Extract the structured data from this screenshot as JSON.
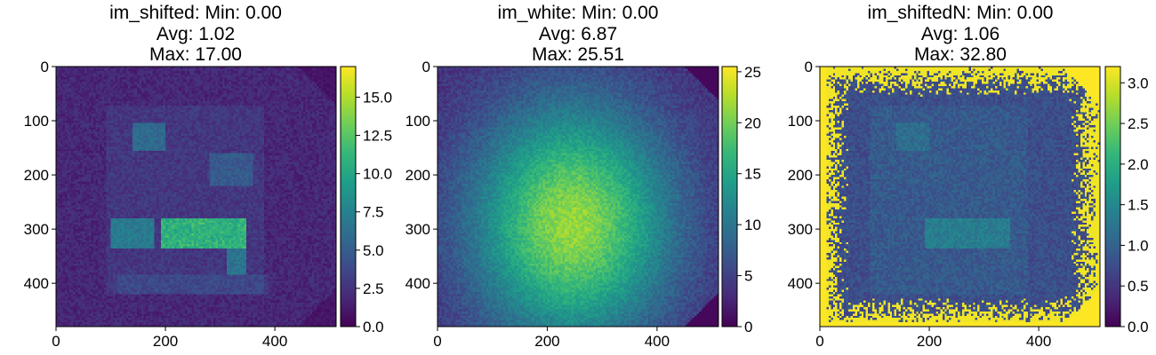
{
  "colors": {
    "colormap": "viridis",
    "viridis_stops": [
      "#440154",
      "#482878",
      "#3e4989",
      "#31688e",
      "#26828e",
      "#1f9e89",
      "#35b779",
      "#6ece58",
      "#b5de2b",
      "#fde725"
    ]
  },
  "chart_data": [
    {
      "type": "heatmap",
      "title": [
        "im_shifted: Min: 0.00",
        "Avg: 1.02",
        "Max: 17.00"
      ],
      "stats": {
        "min": 0.0,
        "avg": 1.02,
        "max": 17.0
      },
      "image_size": [
        512,
        480
      ],
      "xlim": [
        0,
        512
      ],
      "ylim": [
        480,
        0
      ],
      "xticks": [
        0,
        200,
        400
      ],
      "yticks": [
        0,
        100,
        200,
        300,
        400
      ],
      "colorbar": {
        "vmin": 0,
        "vmax": 17,
        "ticks": [
          0.0,
          2.5,
          5.0,
          7.5,
          10.0,
          12.5,
          15.0
        ],
        "labels": [
          "0.0",
          "2.5",
          "5.0",
          "7.5",
          "10.0",
          "12.5",
          "15.0"
        ]
      },
      "pattern": "grid_of_squares_with_bright_row",
      "grid": false
    },
    {
      "type": "heatmap",
      "title": [
        "im_white: Min: 0.00",
        "Avg: 6.87",
        "Max: 25.51"
      ],
      "stats": {
        "min": 0.0,
        "avg": 6.87,
        "max": 25.51
      },
      "image_size": [
        512,
        480
      ],
      "xlim": [
        0,
        512
      ],
      "ylim": [
        480,
        0
      ],
      "xticks": [
        0,
        200,
        400
      ],
      "yticks": [
        0,
        100,
        200,
        300,
        400
      ],
      "colorbar": {
        "vmin": 0,
        "vmax": 25.51,
        "ticks": [
          0,
          5,
          10,
          15,
          20,
          25
        ],
        "labels": [
          "0",
          "5",
          "10",
          "15",
          "20",
          "25"
        ]
      },
      "pattern": "radial_blob_centered_near_x250_y290",
      "grid": false
    },
    {
      "type": "heatmap",
      "title": [
        "im_shiftedN: Min: 0.00",
        "Avg: 1.06",
        "Max: 32.80"
      ],
      "stats": {
        "min": 0.0,
        "avg": 1.06,
        "max": 32.8
      },
      "image_size": [
        512,
        480
      ],
      "xlim": [
        0,
        512
      ],
      "ylim": [
        480,
        0
      ],
      "xticks": [
        0,
        200,
        400
      ],
      "yticks": [
        0,
        100,
        200,
        300,
        400
      ],
      "colorbar": {
        "vmin": 0,
        "vmax": 3.2,
        "ticks": [
          0.0,
          0.5,
          1.0,
          1.5,
          2.0,
          2.5,
          3.0
        ],
        "labels": [
          "0.0",
          "0.5",
          "1.0",
          "1.5",
          "2.0",
          "2.5",
          "3.0"
        ]
      },
      "pattern": "normalized_with_saturated_edges",
      "grid": false
    }
  ]
}
